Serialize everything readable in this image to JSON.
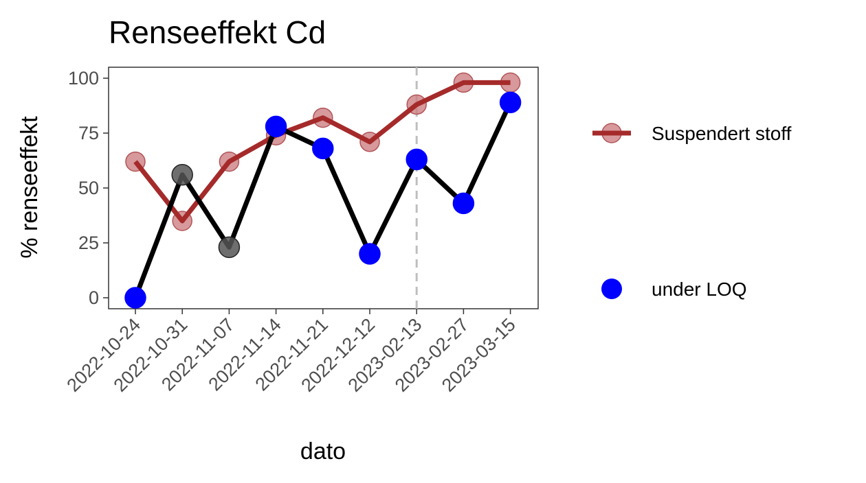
{
  "chart_data": {
    "type": "line",
    "title": "Renseeffekt Cd",
    "xlabel": "dato",
    "ylabel": "% renseeffekt",
    "categories": [
      "2022-10-24",
      "2022-10-31",
      "2022-11-07",
      "2022-11-14",
      "2022-11-21",
      "2022-12-12",
      "2023-02-13",
      "2023-02-27",
      "2023-03-15"
    ],
    "ylim": [
      -5,
      105
    ],
    "yticks": [
      0,
      25,
      50,
      75,
      100
    ],
    "grid": false,
    "legend_placement": "right",
    "vline_category": "2023-02-13",
    "series": [
      {
        "values": [
          0,
          56,
          23,
          78,
          68,
          20,
          63,
          43,
          89
        ],
        "under_loq": [
          true,
          false,
          false,
          true,
          true,
          true,
          true,
          true,
          true
        ],
        "color": "#000000"
      },
      {
        "name": "Suspendert stoff",
        "values": [
          62,
          35,
          62,
          74,
          82,
          71,
          88,
          98,
          98
        ],
        "color": "#a52a2a",
        "marker_color": "#cd7f82"
      }
    ],
    "legend": [
      {
        "label": "Suspendert stoff",
        "kind": "line-point",
        "color": "#a52a2a"
      },
      {
        "label": "under LOQ",
        "kind": "point",
        "color": "#0000ff"
      }
    ],
    "under_loq_color": "#0000ff",
    "not_under_loq_color": "#555555"
  }
}
